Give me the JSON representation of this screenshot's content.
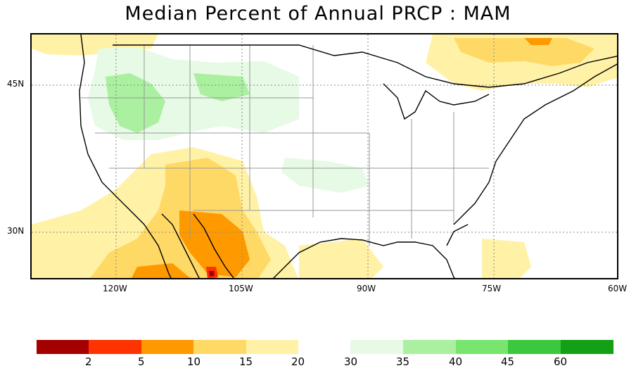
{
  "title": "Median Percent of Annual PRCP   :  MAM",
  "axes": {
    "y_ticks": [
      "45N",
      "30N"
    ],
    "x_ticks": [
      "120W",
      "105W",
      "90W",
      "75W",
      "60W"
    ]
  },
  "legend": {
    "low_colors": [
      "#a50000",
      "#ff3300",
      "#ff9900",
      "#ffd966",
      "#fff2a6"
    ],
    "high_colors": [
      "#e6fae6",
      "#aaf0a0",
      "#78e66e",
      "#3cc83c",
      "#14a014"
    ],
    "labels": [
      "2",
      "5",
      "10",
      "15",
      "20",
      "30",
      "35",
      "40",
      "45",
      "60"
    ]
  },
  "map": {
    "region": "Contiguous United States",
    "colors": {
      "dry_light": "#fff2a6",
      "dry_mid": "#ffd966",
      "dry_orange": "#ff9900",
      "dry_red": "#ff3300",
      "dry_dark": "#a50000",
      "wet_light": "#e6fae6",
      "wet_mid": "#aaf0a0",
      "coast": "#000000",
      "state": "#999999",
      "grid": "#888888"
    }
  }
}
